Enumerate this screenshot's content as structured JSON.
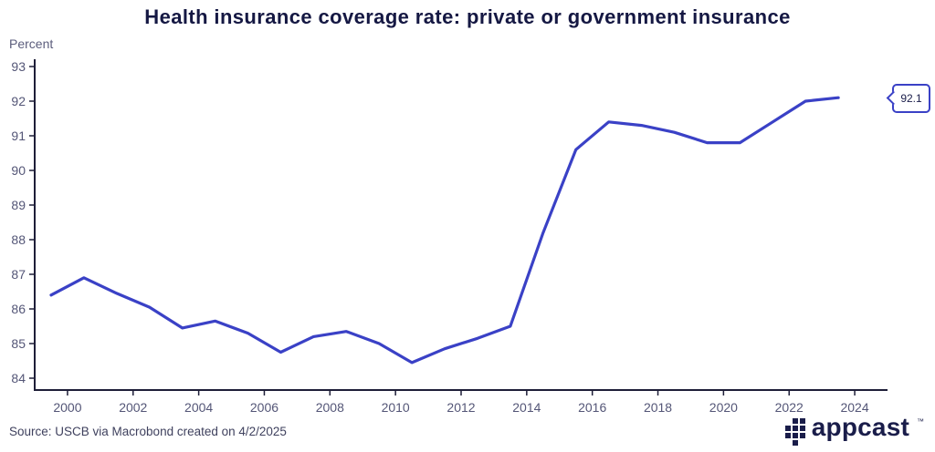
{
  "title": "Health insurance coverage rate: private or government insurance",
  "y_axis_unit": "Percent",
  "source": "Source: USCB via Macrobond created on 4/2/2025",
  "logo": {
    "text": "appcast",
    "trademark": "™",
    "icon": "appcast-grid-icon"
  },
  "colors": {
    "line": "#3a41c6",
    "title_text": "#151843",
    "axis_text": "#545677",
    "axis_spine": "#1e1e38",
    "callout_border": "#3a41c6"
  },
  "chart_data": {
    "type": "line",
    "title": "Health insurance coverage rate: private or government insurance",
    "ylabel": "Percent",
    "x": [
      1999,
      2000,
      2001,
      2002,
      2003,
      2004,
      2005,
      2006,
      2007,
      2008,
      2009,
      2010,
      2011,
      2012,
      2013,
      2014,
      2015,
      2016,
      2017,
      2018,
      2019,
      2020,
      2021,
      2022,
      2023
    ],
    "values": [
      86.4,
      86.9,
      86.45,
      86.05,
      85.45,
      85.65,
      85.3,
      84.75,
      85.2,
      85.35,
      85.0,
      84.45,
      84.85,
      85.15,
      85.5,
      88.2,
      90.6,
      91.4,
      91.3,
      91.1,
      90.8,
      90.8,
      91.4,
      92.0,
      92.1
    ],
    "end_label": "92.1",
    "xticks": [
      2000,
      2002,
      2004,
      2006,
      2008,
      2010,
      2012,
      2014,
      2016,
      2018,
      2020,
      2022,
      2024
    ],
    "yticks": [
      84,
      85,
      86,
      87,
      88,
      89,
      90,
      91,
      92,
      93
    ],
    "xlim": [
      1999,
      2025
    ],
    "ylim": [
      84,
      93
    ],
    "x_offset": 0.5,
    "grid": false,
    "legend_position": "none"
  }
}
